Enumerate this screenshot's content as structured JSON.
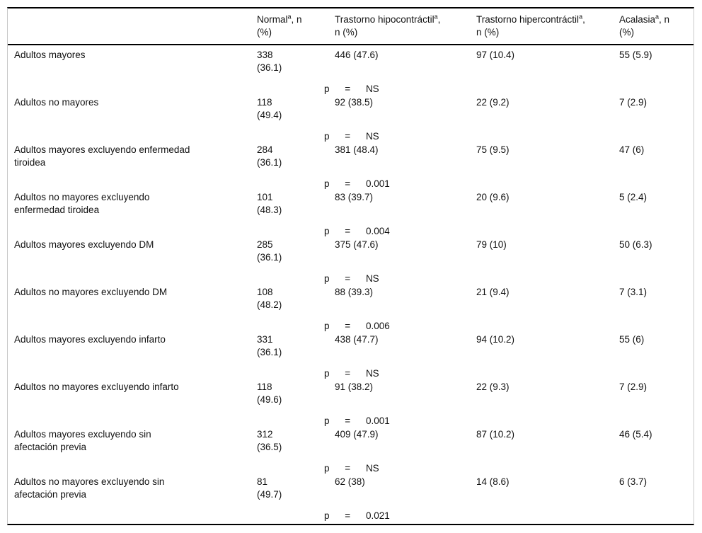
{
  "table": {
    "columns": [
      {
        "name": "",
        "sup": "",
        "line1_suffix": "",
        "line2": ""
      },
      {
        "name": "Normal",
        "sup": "a",
        "line1_suffix": ", n",
        "line2": "(%)"
      },
      {
        "name": "Trastorno hipocontráctil",
        "sup": "a",
        "line1_suffix": ",",
        "line2": "n (%)"
      },
      {
        "name": "Trastorno hipercontráctil",
        "sup": "a",
        "line1_suffix": ",",
        "line2": "n (%)"
      },
      {
        "name": "Acalasia",
        "sup": "a",
        "line1_suffix": ", n",
        "line2": "(%)"
      }
    ],
    "p_label": "p",
    "p_equals": "=",
    "rows": [
      {
        "label": "Adultos mayores",
        "normal_n": "338",
        "normal_pct": "(36.1)",
        "hipocontractil": "446 (47.6)",
        "hipercontractil": "97 (10.4)",
        "acalasia": "55 (5.9)",
        "p": "NS"
      },
      {
        "label": "Adultos no mayores",
        "normal_n": "118",
        "normal_pct": "(49.4)",
        "hipocontractil": "92 (38.5)",
        "hipercontractil": "22 (9.2)",
        "acalasia": "7 (2.9)",
        "p": "NS"
      },
      {
        "label": "Adultos mayores excluyendo enfermedad tiroidea",
        "normal_n": "284",
        "normal_pct": "(36.1)",
        "hipocontractil": "381 (48.4)",
        "hipercontractil": "75 (9.5)",
        "acalasia": "47 (6)",
        "p": "0.001"
      },
      {
        "label": "Adultos no mayores excluyendo enfermedad tiroidea",
        "normal_n": "101",
        "normal_pct": "(48.3)",
        "hipocontractil": "83 (39.7)",
        "hipercontractil": "20 (9.6)",
        "acalasia": "5 (2.4)",
        "p": "0.004"
      },
      {
        "label": "Adultos mayores excluyendo DM",
        "normal_n": "285",
        "normal_pct": "(36.1)",
        "hipocontractil": "375 (47.6)",
        "hipercontractil": "79 (10)",
        "acalasia": "50 (6.3)",
        "p": "NS"
      },
      {
        "label": "Adultos no mayores excluyendo DM",
        "normal_n": "108",
        "normal_pct": "(48.2)",
        "hipocontractil": "88 (39.3)",
        "hipercontractil": "21 (9.4)",
        "acalasia": "7 (3.1)",
        "p": "0.006"
      },
      {
        "label": "Adultos mayores excluyendo infarto",
        "normal_n": "331",
        "normal_pct": "(36.1)",
        "hipocontractil": "438 (47.7)",
        "hipercontractil": "94 (10.2)",
        "acalasia": "55 (6)",
        "p": "NS"
      },
      {
        "label": "Adultos no mayores excluyendo infarto",
        "normal_n": "118",
        "normal_pct": "(49.6)",
        "hipocontractil": "91 (38.2)",
        "hipercontractil": "22 (9.3)",
        "acalasia": "7 (2.9)",
        "p": "0.001"
      },
      {
        "label": "Adultos mayores excluyendo sin afectación previa",
        "normal_n": "312",
        "normal_pct": "(36.5)",
        "hipocontractil": "409 (47.9)",
        "hipercontractil": "87 (10.2)",
        "acalasia": "46 (5.4)",
        "p": "NS"
      },
      {
        "label": "Adultos no mayores excluyendo sin afectación previa",
        "normal_n": "81",
        "normal_pct": "(49.7)",
        "hipocontractil": "62 (38)",
        "hipercontractil": "14 (8.6)",
        "acalasia": "6 (3.7)",
        "p": "0.021"
      }
    ]
  },
  "colors": {
    "rule": "#000000",
    "frame": "#c9c9c9",
    "text": "#111111",
    "background": "#ffffff"
  }
}
